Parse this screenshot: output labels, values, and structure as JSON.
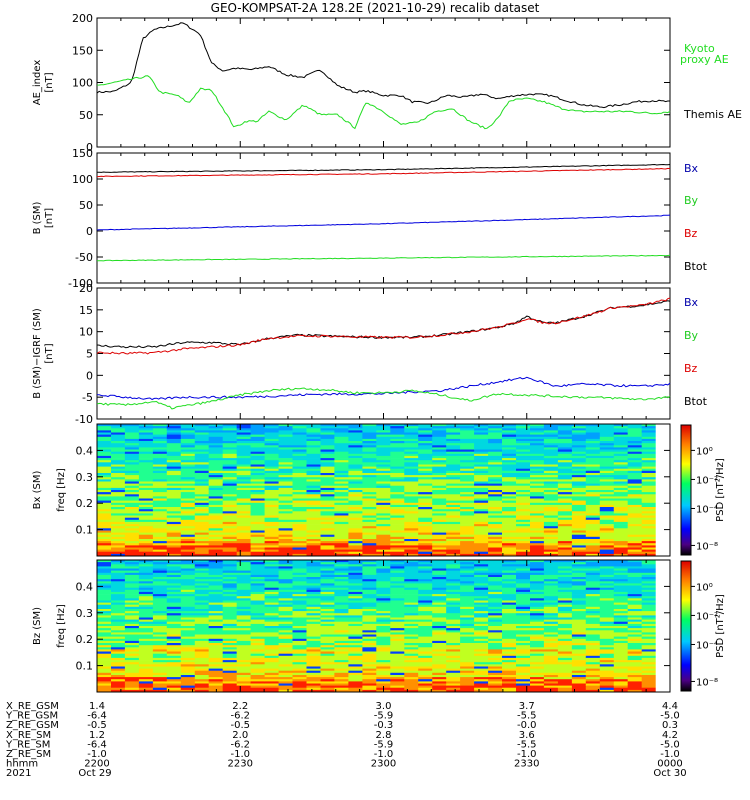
{
  "title": "GEO-KOMPSAT-2A 128.2E (2021-10-29) recalib dataset",
  "chart_data": [
    {
      "type": "line",
      "panel": "ae",
      "ylabel": "AE_index",
      "yunit": "[nT]",
      "ylim": [
        0,
        200
      ],
      "yticks": [
        "0",
        "50",
        "100",
        "150",
        "200"
      ],
      "xlim": [
        0,
        1
      ],
      "series": [
        {
          "name": "Themis AE",
          "color": "#000000",
          "x": [
            0,
            0.03,
            0.06,
            0.08,
            0.1,
            0.13,
            0.15,
            0.18,
            0.2,
            0.22,
            0.24,
            0.27,
            0.3,
            0.33,
            0.36,
            0.39,
            0.42,
            0.45,
            0.47,
            0.5,
            0.53,
            0.55,
            0.58,
            0.61,
            0.64,
            0.67,
            0.7,
            0.73,
            0.76,
            0.79,
            0.82,
            0.85,
            0.88,
            0.91,
            0.94,
            0.97,
            1.0
          ],
          "y": [
            85,
            86,
            100,
            168,
            182,
            188,
            192,
            175,
            130,
            118,
            122,
            120,
            125,
            112,
            108,
            120,
            95,
            85,
            87,
            80,
            80,
            70,
            68,
            80,
            77,
            82,
            75,
            80,
            82,
            80,
            72,
            65,
            62,
            65,
            70,
            72,
            70
          ]
        },
        {
          "name": "Kyoto proxy AE",
          "color": "#22dd22",
          "x": [
            0,
            0.03,
            0.06,
            0.09,
            0.11,
            0.14,
            0.16,
            0.18,
            0.2,
            0.22,
            0.24,
            0.26,
            0.28,
            0.3,
            0.33,
            0.36,
            0.39,
            0.42,
            0.45,
            0.47,
            0.5,
            0.53,
            0.56,
            0.59,
            0.62,
            0.65,
            0.68,
            0.7,
            0.72,
            0.75,
            0.78,
            0.81,
            0.84,
            0.87,
            0.9,
            0.93,
            0.97,
            1.0
          ],
          "y": [
            95,
            100,
            105,
            110,
            85,
            80,
            68,
            90,
            88,
            60,
            30,
            40,
            40,
            55,
            42,
            65,
            50,
            50,
            30,
            70,
            55,
            35,
            38,
            55,
            60,
            40,
            28,
            45,
            72,
            75,
            70,
            60,
            55,
            55,
            55,
            55,
            52,
            55
          ]
        }
      ]
    },
    {
      "type": "line",
      "panel": "b_sm",
      "ylabel": "B (SM)",
      "yunit": "[nT]",
      "ylim": [
        -100,
        150
      ],
      "yticks": [
        "-100",
        "-50",
        "0",
        "50",
        "100",
        "150"
      ],
      "xlim": [
        0,
        1
      ],
      "series": [
        {
          "name": "Bx",
          "color": "#000000",
          "x": [
            0,
            0.5,
            1
          ],
          "y": [
            113,
            118,
            128
          ]
        },
        {
          "name": "By",
          "color": "#dd0000",
          "x": [
            0,
            0.5,
            1
          ],
          "y": [
            105,
            110,
            120
          ]
        },
        {
          "name": "Bz",
          "color": "#0000dd",
          "x": [
            0,
            0.5,
            1
          ],
          "y": [
            2,
            14,
            30
          ]
        },
        {
          "name": "Btot",
          "color": "#22dd22",
          "x": [
            0,
            0.5,
            1
          ],
          "y": [
            -57,
            -52,
            -47
          ]
        }
      ]
    },
    {
      "type": "line",
      "panel": "db_sm",
      "ylabel": "B (SM)−IGRF (SM)",
      "yunit": "[nT]",
      "ylim": [
        -10,
        20
      ],
      "yticks": [
        "-10",
        "-5",
        "0",
        "5",
        "10",
        "15",
        "20"
      ],
      "xlim": [
        0,
        1
      ],
      "series": [
        {
          "name": "Bx",
          "color": "#000000",
          "x": [
            0,
            0.05,
            0.1,
            0.15,
            0.2,
            0.25,
            0.3,
            0.35,
            0.4,
            0.45,
            0.5,
            0.55,
            0.6,
            0.65,
            0.7,
            0.73,
            0.75,
            0.78,
            0.8,
            0.85,
            0.9,
            0.95,
            1.0
          ],
          "y": [
            6.8,
            6.5,
            6.5,
            7.5,
            7.5,
            7,
            8.5,
            9.2,
            9,
            8.8,
            8.7,
            8.7,
            9.2,
            10,
            11,
            12,
            13.5,
            12,
            12,
            13.5,
            15.5,
            16,
            17
          ]
        },
        {
          "name": "By",
          "color": "#dd0000",
          "x": [
            0,
            0.05,
            0.1,
            0.15,
            0.2,
            0.25,
            0.3,
            0.35,
            0.4,
            0.45,
            0.5,
            0.55,
            0.6,
            0.65,
            0.7,
            0.73,
            0.75,
            0.78,
            0.8,
            0.85,
            0.9,
            0.95,
            1.0
          ],
          "y": [
            5.2,
            5,
            5.2,
            6,
            6.5,
            7,
            8.5,
            9,
            9,
            8.8,
            8.7,
            8.7,
            9.2,
            10,
            11,
            12,
            13,
            12,
            12,
            13.5,
            15.5,
            16,
            17.5
          ]
        },
        {
          "name": "Bz",
          "color": "#0000dd",
          "x": [
            0,
            0.05,
            0.1,
            0.15,
            0.2,
            0.25,
            0.3,
            0.35,
            0.4,
            0.45,
            0.5,
            0.55,
            0.6,
            0.65,
            0.7,
            0.75,
            0.8,
            0.85,
            0.9,
            0.95,
            1.0
          ],
          "y": [
            -4.5,
            -5,
            -5.5,
            -5,
            -5,
            -5,
            -4.8,
            -4.5,
            -4.3,
            -4.3,
            -4.2,
            -3.8,
            -3.5,
            -2.5,
            -1.5,
            -0.5,
            -2.5,
            -2,
            -2.3,
            -2.5,
            -2
          ]
        },
        {
          "name": "Btot",
          "color": "#22dd22",
          "x": [
            0,
            0.05,
            0.1,
            0.13,
            0.2,
            0.25,
            0.3,
            0.35,
            0.4,
            0.45,
            0.5,
            0.55,
            0.6,
            0.65,
            0.7,
            0.75,
            0.8,
            0.85,
            0.9,
            0.95,
            1.0
          ],
          "y": [
            -6.5,
            -6.8,
            -6,
            -7.5,
            -6,
            -4.5,
            -3.5,
            -3,
            -3.3,
            -4,
            -4,
            -3.5,
            -4.5,
            -5.8,
            -4.2,
            -4.5,
            -4.8,
            -5,
            -5.2,
            -5.5,
            -5
          ]
        }
      ]
    },
    {
      "type": "heatmap",
      "panel": "bx_psd",
      "ylabel": "Bx (SM)",
      "yunit": "freq [Hz]",
      "ylim": [
        0,
        0.5
      ],
      "yticks": [
        "0.1",
        "0.2",
        "0.3",
        "0.4"
      ],
      "colorbar_label": "PSD [nT²/Hz]",
      "colorbar_ticks": [
        "10⁰",
        "10⁻²",
        "10⁻⁴",
        "10⁻⁸"
      ]
    },
    {
      "type": "heatmap",
      "panel": "bz_psd",
      "ylabel": "Bz (SM)",
      "yunit": "freq [Hz]",
      "ylim": [
        0,
        0.5
      ],
      "yticks": [
        "0.1",
        "0.2",
        "0.3",
        "0.4"
      ],
      "colorbar_label": "PSD [nT²/Hz]",
      "colorbar_ticks": [
        "10⁰",
        "10⁻²",
        "10⁻⁴",
        "10⁻⁸"
      ]
    }
  ],
  "legends": {
    "ae": [
      "Kyoto",
      "proxy AE",
      "Themis AE"
    ],
    "b": [
      "Bx",
      "By",
      "Bz",
      "Btot"
    ],
    "db": [
      "Bx",
      "By",
      "Bz",
      "Btot"
    ]
  },
  "orbit_table": {
    "row_labels": [
      "X_RE_GSM",
      "Y_RE_GSM",
      "Z_RE_GSM",
      "X_RE_SM",
      "Y_RE_SM",
      "Z_RE_SM",
      "hhmm",
      "2021"
    ],
    "columns": [
      [
        "1.4",
        "-6.4",
        "-0.5",
        "1.2",
        "-6.4",
        "-1.0",
        "2200",
        "Oct 29"
      ],
      [
        "2.2",
        "-6.2",
        "-0.5",
        "2.0",
        "-6.2",
        "-1.0",
        "2230",
        ""
      ],
      [
        "3.0",
        "-5.9",
        "-0.3",
        "2.8",
        "-5.9",
        "-1.0",
        "2300",
        ""
      ],
      [
        "3.7",
        "-5.5",
        "-0.0",
        "3.6",
        "-5.5",
        "-1.0",
        "2330",
        ""
      ],
      [
        "4.4",
        "-5.0",
        "0.3",
        "4.2",
        "-5.0",
        "-1.0",
        "0000",
        "Oct 30"
      ]
    ]
  },
  "colors": {
    "themis": "#000000",
    "kyoto": "#22dd22",
    "bx_legend": "#0000aa",
    "by_legend": "#22cc22",
    "bz_legend": "#dd0000",
    "btot_legend": "#000000"
  }
}
